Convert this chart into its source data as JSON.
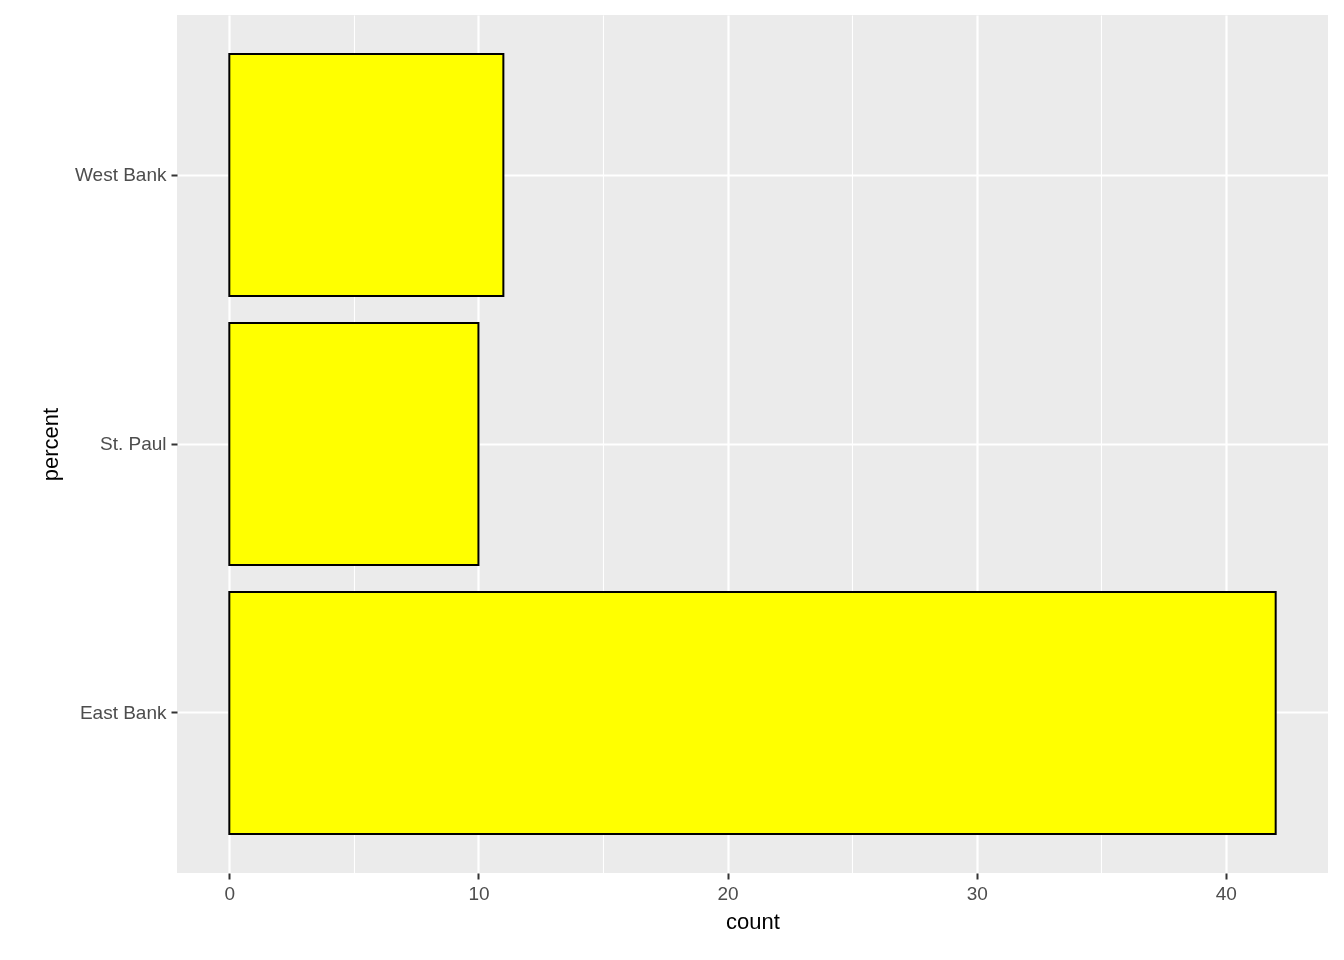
{
  "chart_data": {
    "type": "bar",
    "orientation": "horizontal",
    "categories": [
      "West Bank",
      "St. Paul",
      "East Bank"
    ],
    "values": [
      11,
      10,
      42
    ],
    "color": "#ffff00",
    "xlabel": "count",
    "ylabel": "percent",
    "xlim": [
      -2.1,
      44.1
    ],
    "xticks": [
      0,
      {
        "value": 5,
        "label": null
      },
      10,
      {
        "value": 15,
        "label": null
      },
      20,
      {
        "value": 25,
        "label": null
      },
      30,
      {
        "value": 35,
        "label": null
      },
      40
    ],
    "grid": true
  }
}
